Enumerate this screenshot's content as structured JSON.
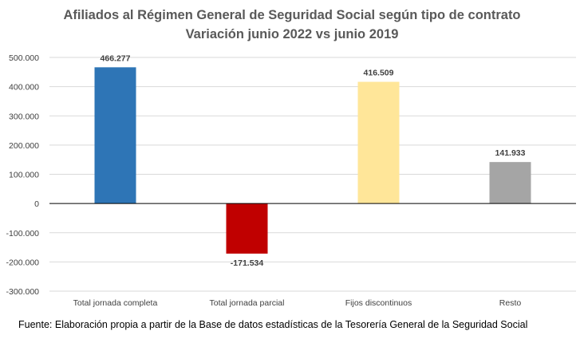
{
  "chart_data": {
    "type": "bar",
    "title": "Afiliados al Régimen General de Seguridad Social según tipo de contrato",
    "subtitle": "Variación junio 2022 vs junio 2019",
    "categories": [
      "Total jornada completa",
      "Total jornada parcial",
      "Fijos discontinuos",
      "Resto"
    ],
    "values": [
      466277,
      -171534,
      416509,
      141933
    ],
    "value_labels": [
      "466.277",
      "-171.534",
      "416.509",
      "141.933"
    ],
    "colors": [
      "#2E75B6",
      "#C00000",
      "#FFE699",
      "#A5A5A5"
    ],
    "ylim": [
      -300000,
      500000
    ],
    "yticks": [
      500000,
      400000,
      300000,
      200000,
      100000,
      0,
      -100000,
      -200000,
      -300000
    ],
    "ytick_labels": [
      "500.000",
      "400.000",
      "300.000",
      "200.000",
      "100.000",
      "0",
      "-100.000",
      "-200.000",
      "-300.000"
    ],
    "grid": true,
    "legend": "none"
  },
  "source": "Fuente: Elaboración propia a partir de la Base de datos estadísticas de la Tesorería General de la Seguridad Social"
}
